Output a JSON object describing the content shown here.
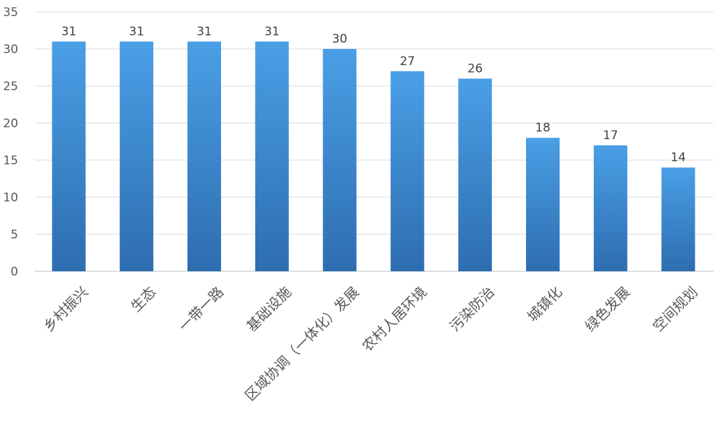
{
  "chart_data": {
    "type": "bar",
    "categories": [
      "乡村振兴",
      "生态",
      "一带一路",
      "基础设施",
      "区域协调（一体化）发展",
      "农村人居环境",
      "污染防治",
      "城镇化",
      "绿色发展",
      "空间规划"
    ],
    "values": [
      31,
      31,
      31,
      31,
      30,
      27,
      26,
      18,
      17,
      14
    ],
    "ylim": [
      0,
      35
    ],
    "yticks": [
      0,
      5,
      10,
      15,
      20,
      25,
      30,
      35
    ],
    "grid": true,
    "data_labels": true,
    "colors": {
      "bar_top": "#4a9fe6",
      "bar_bottom": "#2e6db0",
      "grid": "#d9d9d9",
      "text": "#595959"
    }
  }
}
